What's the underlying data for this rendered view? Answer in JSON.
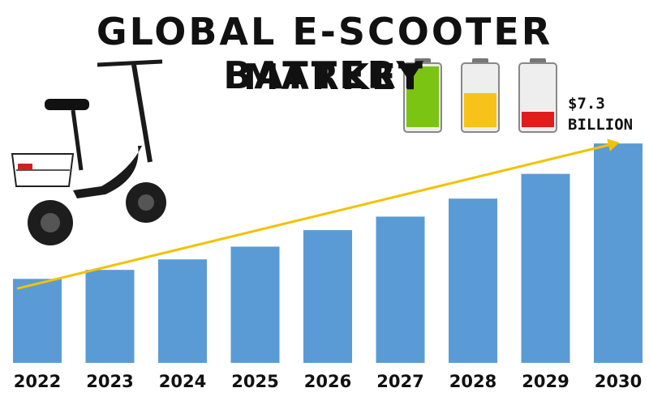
{
  "title_line1": "GLOBAL E-SCOOTER BATTERY",
  "title_line2": "MARKET",
  "callout": {
    "value": "$7.3",
    "unit": "BILLION"
  },
  "icons": [
    "scooter-image",
    "battery-full-icon",
    "battery-half-icon",
    "battery-low-icon"
  ],
  "colors": {
    "bar": "#5b9bd5",
    "trend": "#f2c200",
    "battery_green": "#7cc414",
    "battery_yellow": "#f7c21a",
    "battery_red": "#e21b1b"
  },
  "chart_data": {
    "type": "bar",
    "categories": [
      "2022",
      "2023",
      "2024",
      "2025",
      "2026",
      "2027",
      "2028",
      "2029",
      "2030"
    ],
    "values": [
      2.24,
      2.48,
      2.76,
      3.1,
      3.54,
      3.9,
      4.38,
      5.04,
      5.85
    ],
    "ylim": [
      0,
      7.3
    ],
    "trend_line": true,
    "grid": false,
    "legend": "none"
  }
}
